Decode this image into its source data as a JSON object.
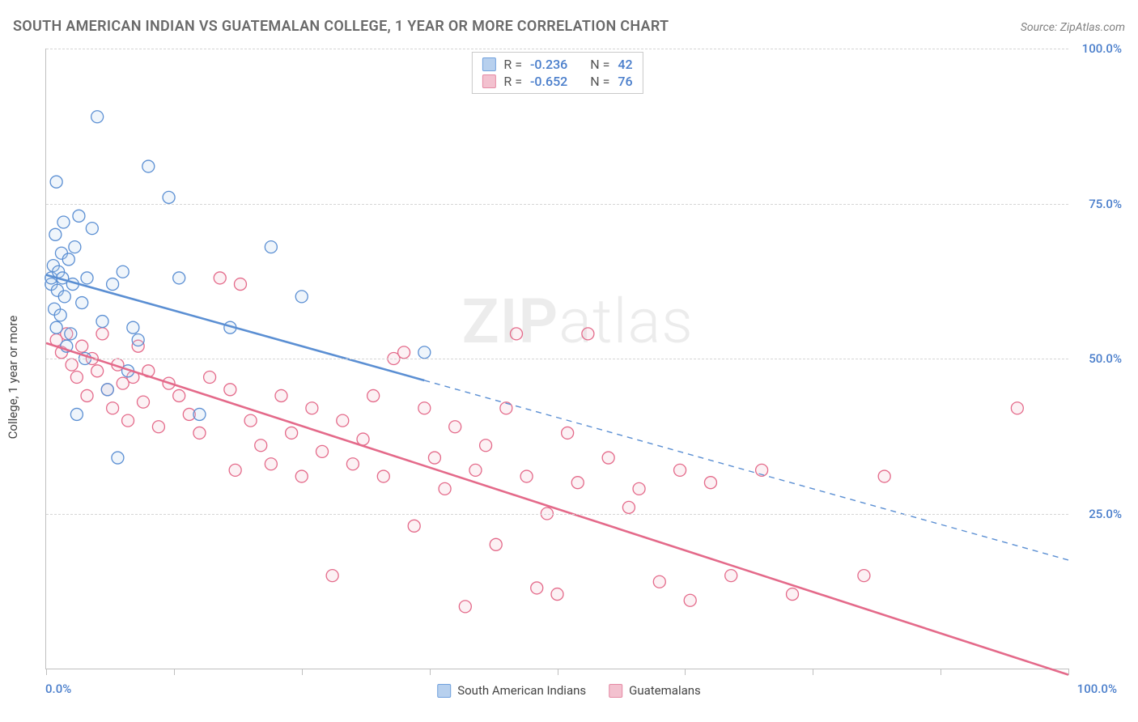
{
  "header": {
    "title": "SOUTH AMERICAN INDIAN VS GUATEMALAN COLLEGE, 1 YEAR OR MORE CORRELATION CHART",
    "source": "Source: ZipAtlas.com"
  },
  "chart": {
    "type": "scatter",
    "ylabel": "College, 1 year or more",
    "xlim": [
      0,
      100
    ],
    "ylim": [
      0,
      100
    ],
    "xtick_positions": [
      0,
      12.5,
      25,
      37.5,
      50,
      62.5,
      75,
      87.5,
      100
    ],
    "xtick_label_left": "0.0%",
    "xtick_label_right": "100.0%",
    "ytick_positions": [
      25,
      50,
      75,
      100
    ],
    "ytick_labels": [
      "25.0%",
      "50.0%",
      "75.0%",
      "100.0%"
    ],
    "grid_color": "#d5d5d5",
    "axis_color": "#bfbfbf",
    "background_color": "#ffffff",
    "marker_radius": 7.5,
    "marker_stroke_width": 1.3,
    "marker_fill_opacity": 0.22,
    "line_width": 2.6,
    "watermark": "ZIPatlas",
    "stats": [
      {
        "r_label": "R =",
        "r": "-0.236",
        "n_label": "N =",
        "n": "42",
        "swatch_fill": "#b7d0ee",
        "swatch_border": "#6fa0dd"
      },
      {
        "r_label": "R =",
        "r": "-0.652",
        "n_label": "N =",
        "n": "76",
        "swatch_fill": "#f3c1cf",
        "swatch_border": "#e58aa4"
      }
    ],
    "legend": [
      {
        "label": "South American Indians",
        "swatch_fill": "#b7d0ee",
        "swatch_border": "#6fa0dd"
      },
      {
        "label": "Guatemalans",
        "swatch_fill": "#f3c1cf",
        "swatch_border": "#e58aa4"
      }
    ],
    "series": [
      {
        "name": "South American Indians",
        "color_fill": "#b7d0ee",
        "color_stroke": "#5b8fd3",
        "regression": {
          "x1": 0,
          "y1": 63.5,
          "x2": 100,
          "y2": 17.5,
          "solid_until_x": 37
        },
        "points": [
          [
            0.5,
            62
          ],
          [
            0.5,
            63
          ],
          [
            0.7,
            65
          ],
          [
            0.8,
            58
          ],
          [
            0.9,
            70
          ],
          [
            1.0,
            55
          ],
          [
            1.0,
            78.5
          ],
          [
            1.1,
            61
          ],
          [
            1.2,
            64
          ],
          [
            1.4,
            57
          ],
          [
            1.5,
            67
          ],
          [
            1.6,
            63
          ],
          [
            1.7,
            72
          ],
          [
            1.8,
            60
          ],
          [
            2.0,
            52
          ],
          [
            2.2,
            66
          ],
          [
            2.4,
            54
          ],
          [
            2.6,
            62
          ],
          [
            2.8,
            68
          ],
          [
            3.0,
            41
          ],
          [
            3.2,
            73
          ],
          [
            3.5,
            59
          ],
          [
            3.8,
            50
          ],
          [
            4.0,
            63
          ],
          [
            4.5,
            71
          ],
          [
            5.0,
            89
          ],
          [
            5.5,
            56
          ],
          [
            6.0,
            45
          ],
          [
            6.5,
            62
          ],
          [
            7.0,
            34
          ],
          [
            7.5,
            64
          ],
          [
            8.0,
            48
          ],
          [
            8.5,
            55
          ],
          [
            9.0,
            53
          ],
          [
            10.0,
            81
          ],
          [
            12.0,
            76
          ],
          [
            13.0,
            63
          ],
          [
            15.0,
            41
          ],
          [
            18.0,
            55
          ],
          [
            22.0,
            68
          ],
          [
            25.0,
            60
          ],
          [
            37.0,
            51
          ]
        ]
      },
      {
        "name": "Guatemalans",
        "color_fill": "#f3c1cf",
        "color_stroke": "#e46a8a",
        "regression": {
          "x1": 0,
          "y1": 52.5,
          "x2": 100,
          "y2": -1.0,
          "solid_until_x": 100
        },
        "points": [
          [
            1.0,
            53
          ],
          [
            1.5,
            51
          ],
          [
            2.0,
            54
          ],
          [
            2.5,
            49
          ],
          [
            3.0,
            47
          ],
          [
            3.5,
            52
          ],
          [
            4.0,
            44
          ],
          [
            4.5,
            50
          ],
          [
            5.0,
            48
          ],
          [
            5.5,
            54
          ],
          [
            6.0,
            45
          ],
          [
            6.5,
            42
          ],
          [
            7.0,
            49
          ],
          [
            7.5,
            46
          ],
          [
            8.0,
            40
          ],
          [
            8.5,
            47
          ],
          [
            9.0,
            52
          ],
          [
            9.5,
            43
          ],
          [
            10.0,
            48
          ],
          [
            11.0,
            39
          ],
          [
            12.0,
            46
          ],
          [
            13.0,
            44
          ],
          [
            14.0,
            41
          ],
          [
            15.0,
            38
          ],
          [
            16.0,
            47
          ],
          [
            17.0,
            63
          ],
          [
            18.0,
            45
          ],
          [
            18.5,
            32
          ],
          [
            19.0,
            62
          ],
          [
            20.0,
            40
          ],
          [
            21.0,
            36
          ],
          [
            22.0,
            33
          ],
          [
            23.0,
            44
          ],
          [
            24.0,
            38
          ],
          [
            25.0,
            31
          ],
          [
            26.0,
            42
          ],
          [
            27.0,
            35
          ],
          [
            28.0,
            15
          ],
          [
            29.0,
            40
          ],
          [
            30.0,
            33
          ],
          [
            31.0,
            37
          ],
          [
            32.0,
            44
          ],
          [
            33.0,
            31
          ],
          [
            34.0,
            50
          ],
          [
            35.0,
            51
          ],
          [
            36.0,
            23
          ],
          [
            37.0,
            42
          ],
          [
            38.0,
            34
          ],
          [
            39.0,
            29
          ],
          [
            40.0,
            39
          ],
          [
            41.0,
            10
          ],
          [
            42.0,
            32
          ],
          [
            43.0,
            36
          ],
          [
            44.0,
            20
          ],
          [
            45.0,
            42
          ],
          [
            46.0,
            54
          ],
          [
            47.0,
            31
          ],
          [
            48.0,
            13
          ],
          [
            49.0,
            25
          ],
          [
            50.0,
            12
          ],
          [
            51.0,
            38
          ],
          [
            52.0,
            30
          ],
          [
            53.0,
            54
          ],
          [
            55.0,
            34
          ],
          [
            57.0,
            26
          ],
          [
            58.0,
            29
          ],
          [
            60.0,
            14
          ],
          [
            62.0,
            32
          ],
          [
            63.0,
            11
          ],
          [
            65.0,
            30
          ],
          [
            67.0,
            15
          ],
          [
            70.0,
            32
          ],
          [
            73.0,
            12
          ],
          [
            80.0,
            15
          ],
          [
            82.0,
            31
          ],
          [
            95.0,
            42
          ]
        ]
      }
    ]
  }
}
